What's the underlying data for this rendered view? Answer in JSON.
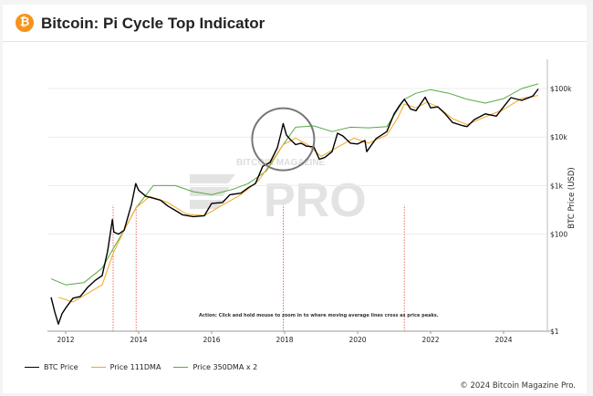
{
  "header": {
    "logo_glyph": "₿",
    "title": "Bitcoin: Pi Cycle Top Indicator"
  },
  "watermark": {
    "small": "BITCOIN MAGAZINE",
    "big": "PRO"
  },
  "annotation": "Action: Click and hold mouse to zoom in to where moving average lines cross as price peaks.",
  "footer": {
    "copyright": "© 2024 Bitcoin Magazine Pro."
  },
  "colors": {
    "btc": "#000000",
    "dma111": "#f5a623",
    "dma350x2": "#5aa845",
    "cross": "#e04a3a",
    "circle": "#777777"
  },
  "chart_data": {
    "type": "line",
    "ylabel": "BTC Price (USD)",
    "yscale": "log",
    "xlim": [
      2011.5,
      2025.2
    ],
    "ylim": [
      1,
      400000
    ],
    "x_ticks": [
      "2012",
      "2014",
      "2016",
      "2018",
      "2020",
      "2022",
      "2024"
    ],
    "y_ticks": [
      {
        "value": 1,
        "label": "$1"
      },
      {
        "value": 100,
        "label": "$100"
      },
      {
        "value": 1000,
        "label": "$1k"
      },
      {
        "value": 10000,
        "label": "$10k"
      },
      {
        "value": 100000,
        "label": "$100k"
      }
    ],
    "pi_cycle_crosses": [
      2013.3,
      2013.93,
      2017.96,
      2021.28
    ],
    "highlight_circle": {
      "x": 2017.96,
      "y": 9000
    },
    "series": [
      {
        "name": "BTC Price",
        "color": "#000000",
        "x": [
          2011.6,
          2011.7,
          2011.8,
          2011.9,
          2012.0,
          2012.2,
          2012.4,
          2012.6,
          2012.8,
          2013.0,
          2013.15,
          2013.28,
          2013.32,
          2013.45,
          2013.6,
          2013.8,
          2013.92,
          2014.0,
          2014.2,
          2014.4,
          2014.6,
          2014.8,
          2015.0,
          2015.2,
          2015.5,
          2015.8,
          2016.0,
          2016.3,
          2016.5,
          2016.8,
          2017.0,
          2017.2,
          2017.4,
          2017.6,
          2017.8,
          2017.9,
          2017.96,
          2018.05,
          2018.15,
          2018.3,
          2018.45,
          2018.6,
          2018.8,
          2018.95,
          2019.1,
          2019.3,
          2019.45,
          2019.6,
          2019.8,
          2020.0,
          2020.2,
          2020.25,
          2020.5,
          2020.8,
          2021.0,
          2021.15,
          2021.28,
          2021.45,
          2021.6,
          2021.85,
          2022.0,
          2022.2,
          2022.4,
          2022.6,
          2022.9,
          2023.0,
          2023.2,
          2023.5,
          2023.8,
          2024.0,
          2024.2,
          2024.5,
          2024.8,
          2024.95
        ],
        "y": [
          5,
          2.5,
          1.4,
          2.3,
          3,
          4.8,
          5.2,
          8,
          11,
          14,
          45,
          200,
          110,
          100,
          120,
          400,
          1100,
          800,
          600,
          550,
          500,
          380,
          310,
          250,
          230,
          240,
          430,
          450,
          650,
          700,
          900,
          1100,
          2500,
          3000,
          6000,
          12000,
          19000,
          11000,
          9000,
          7000,
          7500,
          6500,
          6300,
          3500,
          3800,
          5000,
          12000,
          10500,
          7500,
          7200,
          8500,
          5000,
          9200,
          13000,
          30000,
          45000,
          60000,
          38000,
          35000,
          66000,
          40000,
          42000,
          30000,
          20000,
          17000,
          16500,
          23000,
          30000,
          27000,
          42000,
          65000,
          57000,
          70000,
          98000
        ]
      },
      {
        "name": "Price 111DMA",
        "color": "#f5a623",
        "x": [
          2011.8,
          2012.2,
          2012.6,
          2013.0,
          2013.3,
          2013.6,
          2013.93,
          2014.3,
          2014.8,
          2015.3,
          2015.8,
          2016.3,
          2016.8,
          2017.3,
          2017.6,
          2017.96,
          2018.3,
          2018.6,
          2019.0,
          2019.5,
          2019.9,
          2020.3,
          2020.8,
          2021.1,
          2021.28,
          2021.6,
          2021.9,
          2022.2,
          2022.6,
          2023.0,
          2023.5,
          2024.0,
          2024.5,
          2024.95
        ],
        "y": [
          5,
          4,
          6,
          9,
          40,
          120,
          350,
          600,
          450,
          260,
          240,
          400,
          650,
          1300,
          2800,
          7000,
          9500,
          7200,
          4000,
          6500,
          9500,
          7500,
          11000,
          25000,
          48000,
          40000,
          52000,
          42000,
          24000,
          18000,
          26000,
          37000,
          63000,
          72000
        ]
      },
      {
        "name": "Price 350DMA x 2",
        "color": "#5aa845",
        "x": [
          2011.6,
          2012.0,
          2012.5,
          2013.0,
          2013.3,
          2013.6,
          2013.93,
          2014.4,
          2015.0,
          2015.5,
          2016.0,
          2016.6,
          2017.0,
          2017.5,
          2017.96,
          2018.3,
          2018.8,
          2019.3,
          2019.8,
          2020.3,
          2020.8,
          2021.28,
          2021.6,
          2022.0,
          2022.5,
          2023.0,
          2023.5,
          2024.0,
          2024.5,
          2024.95
        ],
        "y": [
          12,
          9,
          10,
          20,
          50,
          120,
          350,
          1000,
          1000,
          750,
          650,
          850,
          1100,
          2000,
          7000,
          16000,
          17000,
          13000,
          16000,
          15500,
          16500,
          60000,
          80000,
          95000,
          80000,
          60000,
          50000,
          62000,
          100000,
          125000
        ]
      }
    ]
  },
  "legend": [
    {
      "label": "BTC Price",
      "color": "#000000"
    },
    {
      "label": "Price 111DMA",
      "color": "#f5a623"
    },
    {
      "label": "Price 350DMA x 2",
      "color": "#5aa845"
    }
  ]
}
